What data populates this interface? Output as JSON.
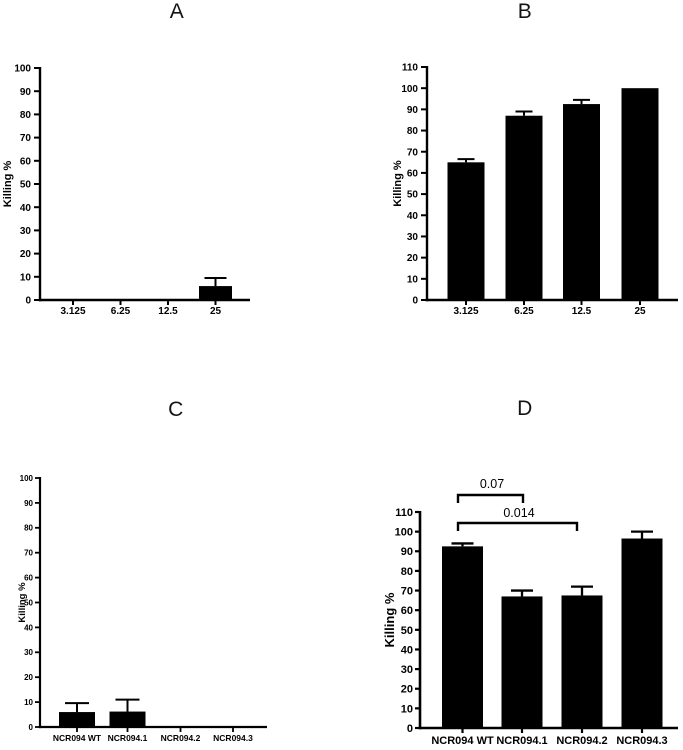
{
  "colors": {
    "bar": "#000000",
    "axis": "#000000",
    "text": "#000000",
    "background": "#ffffff"
  },
  "chart_data": [
    {
      "id": "A",
      "type": "bar",
      "title": "A",
      "xlabel": "",
      "ylabel": "Killing %",
      "ylim": [
        0,
        100
      ],
      "ytick_step": 10,
      "grid": false,
      "legend": null,
      "categories": [
        "3.125",
        "6.25",
        "12.5",
        "25"
      ],
      "values": [
        0,
        0,
        0,
        6
      ],
      "errors": [
        0,
        0,
        0,
        3.5
      ],
      "annotations": []
    },
    {
      "id": "B",
      "type": "bar",
      "title": "B",
      "xlabel": "",
      "ylabel": "Killing %",
      "ylim": [
        0,
        110
      ],
      "ytick_step": 10,
      "grid": false,
      "legend": null,
      "categories": [
        "3.125",
        "6.25",
        "12.5",
        "25"
      ],
      "values": [
        65,
        87,
        92.5,
        100
      ],
      "errors": [
        1.5,
        2,
        2,
        0
      ],
      "annotations": []
    },
    {
      "id": "C",
      "type": "bar",
      "title": "C",
      "xlabel": "",
      "ylabel": "Killing %",
      "ylim": [
        0,
        100
      ],
      "ytick_step": 10,
      "grid": false,
      "legend": null,
      "categories": [
        "NCR094 WT",
        "NCR094.1",
        "NCR094.2",
        "NCR094.3"
      ],
      "values": [
        6,
        6.2,
        0,
        0
      ],
      "errors": [
        3.6,
        4.8,
        0,
        0
      ],
      "annotations": []
    },
    {
      "id": "D",
      "type": "bar",
      "title": "D",
      "xlabel": "",
      "ylabel": "Killing %",
      "ylim": [
        0,
        110
      ],
      "ytick_step": 10,
      "grid": false,
      "legend": null,
      "categories": [
        "NCR094 WT",
        "NCR094.1",
        "NCR094.2",
        "NCR094.3"
      ],
      "values": [
        92.5,
        67,
        67.5,
        96.5
      ],
      "errors": [
        1.5,
        3,
        4.5,
        3.5
      ],
      "annotations": [
        {
          "type": "p-value-bracket",
          "label": "0.07",
          "from_category": "NCR094 WT",
          "to_category": "NCR094.1"
        },
        {
          "type": "p-value-bracket",
          "label": "0.014",
          "from_category": "NCR094 WT",
          "to_category": "NCR094.2"
        }
      ]
    }
  ]
}
